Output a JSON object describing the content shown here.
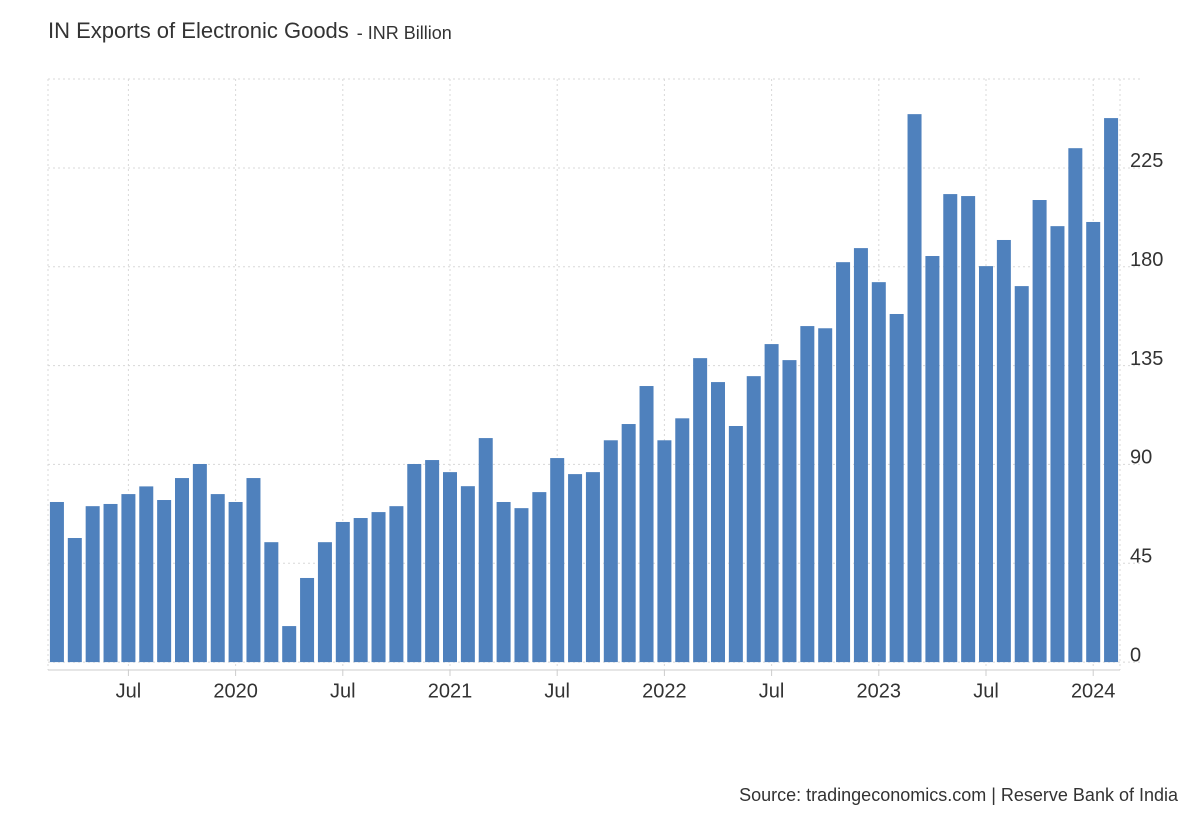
{
  "chart_data": {
    "type": "bar",
    "title": "IN Exports of Electronic Goods",
    "subtitle": "- INR Billion",
    "source": "Source: tradingeconomics.com | Reserve Bank of India",
    "categories": [
      null,
      null,
      null,
      null,
      "Jul",
      null,
      null,
      null,
      null,
      null,
      "2020",
      null,
      null,
      null,
      null,
      null,
      "Jul",
      null,
      null,
      null,
      null,
      null,
      "2021",
      null,
      null,
      null,
      null,
      null,
      "Jul",
      null,
      null,
      null,
      null,
      null,
      "2022",
      null,
      null,
      null,
      null,
      null,
      "Jul",
      null,
      null,
      null,
      null,
      null,
      "2023",
      null,
      null,
      null,
      null,
      null,
      "Jul",
      null,
      null,
      null,
      null,
      null,
      "2024",
      null
    ],
    "values": [
      72.9,
      56.5,
      71,
      72,
      76.5,
      80,
      73.8,
      83.8,
      90.2,
      76.5,
      72.9,
      83.8,
      54.6,
      16.4,
      38.3,
      54.6,
      63.8,
      65.6,
      68.3,
      71,
      90.2,
      92,
      86.5,
      80.1,
      102,
      72.9,
      70.1,
      77.4,
      92.9,
      85.6,
      86.5,
      101,
      108.4,
      125.7,
      101,
      111,
      138.4,
      127.5,
      107.5,
      130.2,
      144.8,
      137.5,
      153,
      152,
      182.1,
      188.5,
      173,
      158.5,
      249.5,
      184.9,
      213.1,
      212.2,
      180.3,
      192.2,
      171.2,
      210.4,
      198.5,
      234,
      200.4,
      247.7
    ],
    "color": "#4f81bd",
    "ylim": [
      -3.6,
      265.5
    ],
    "yticks": [
      0,
      45,
      90,
      135,
      180,
      225
    ],
    "grid": true
  }
}
